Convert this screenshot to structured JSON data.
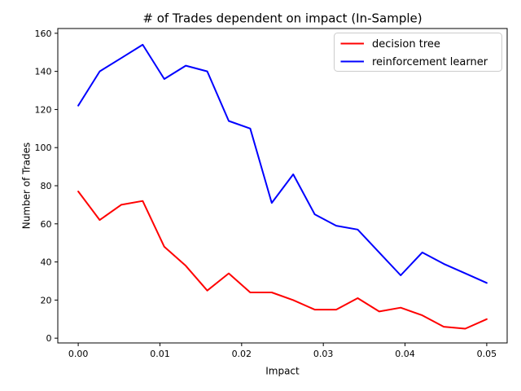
{
  "chart_data": {
    "type": "line",
    "title": "# of Trades dependent on impact (In-Sample)",
    "xlabel": "Impact",
    "ylabel": "Number of Trades",
    "x": [
      0.0,
      0.00263,
      0.00526,
      0.00789,
      0.01053,
      0.01316,
      0.01579,
      0.01842,
      0.02105,
      0.02368,
      0.02632,
      0.02895,
      0.03158,
      0.03421,
      0.03684,
      0.03947,
      0.04211,
      0.04474,
      0.04737,
      0.05
    ],
    "series": [
      {
        "name": "decision tree",
        "color": "#ff0000",
        "values": [
          77,
          62,
          70,
          72,
          48,
          38,
          25,
          34,
          24,
          24,
          20,
          15,
          15,
          21,
          14,
          16,
          12,
          6,
          5,
          10
        ]
      },
      {
        "name": "reinforcement learner",
        "color": "#0000ff",
        "values": [
          122,
          140,
          147,
          154,
          136,
          143,
          140,
          114,
          110,
          71,
          86,
          65,
          59,
          57,
          45,
          33,
          45,
          39,
          34,
          29
        ]
      }
    ],
    "xticks": {
      "values": [
        0.0,
        0.01,
        0.02,
        0.03,
        0.04,
        0.05
      ],
      "labels": [
        "0.00",
        "0.01",
        "0.02",
        "0.03",
        "0.04",
        "0.05"
      ]
    },
    "yticks": {
      "values": [
        0,
        20,
        40,
        60,
        80,
        100,
        120,
        140,
        160
      ],
      "labels": [
        "0",
        "20",
        "40",
        "60",
        "80",
        "100",
        "120",
        "140",
        "160"
      ]
    },
    "xlim": [
      -0.0025,
      0.0525
    ],
    "ylim": [
      -2.5,
      162.5
    ],
    "grid": false,
    "legend_position": "upper right",
    "legend_entries": [
      "decision tree",
      "reinforcement learner"
    ],
    "axis_color": "#000000",
    "legend_border_color": "#cccccc",
    "background_color": "#ffffff"
  }
}
